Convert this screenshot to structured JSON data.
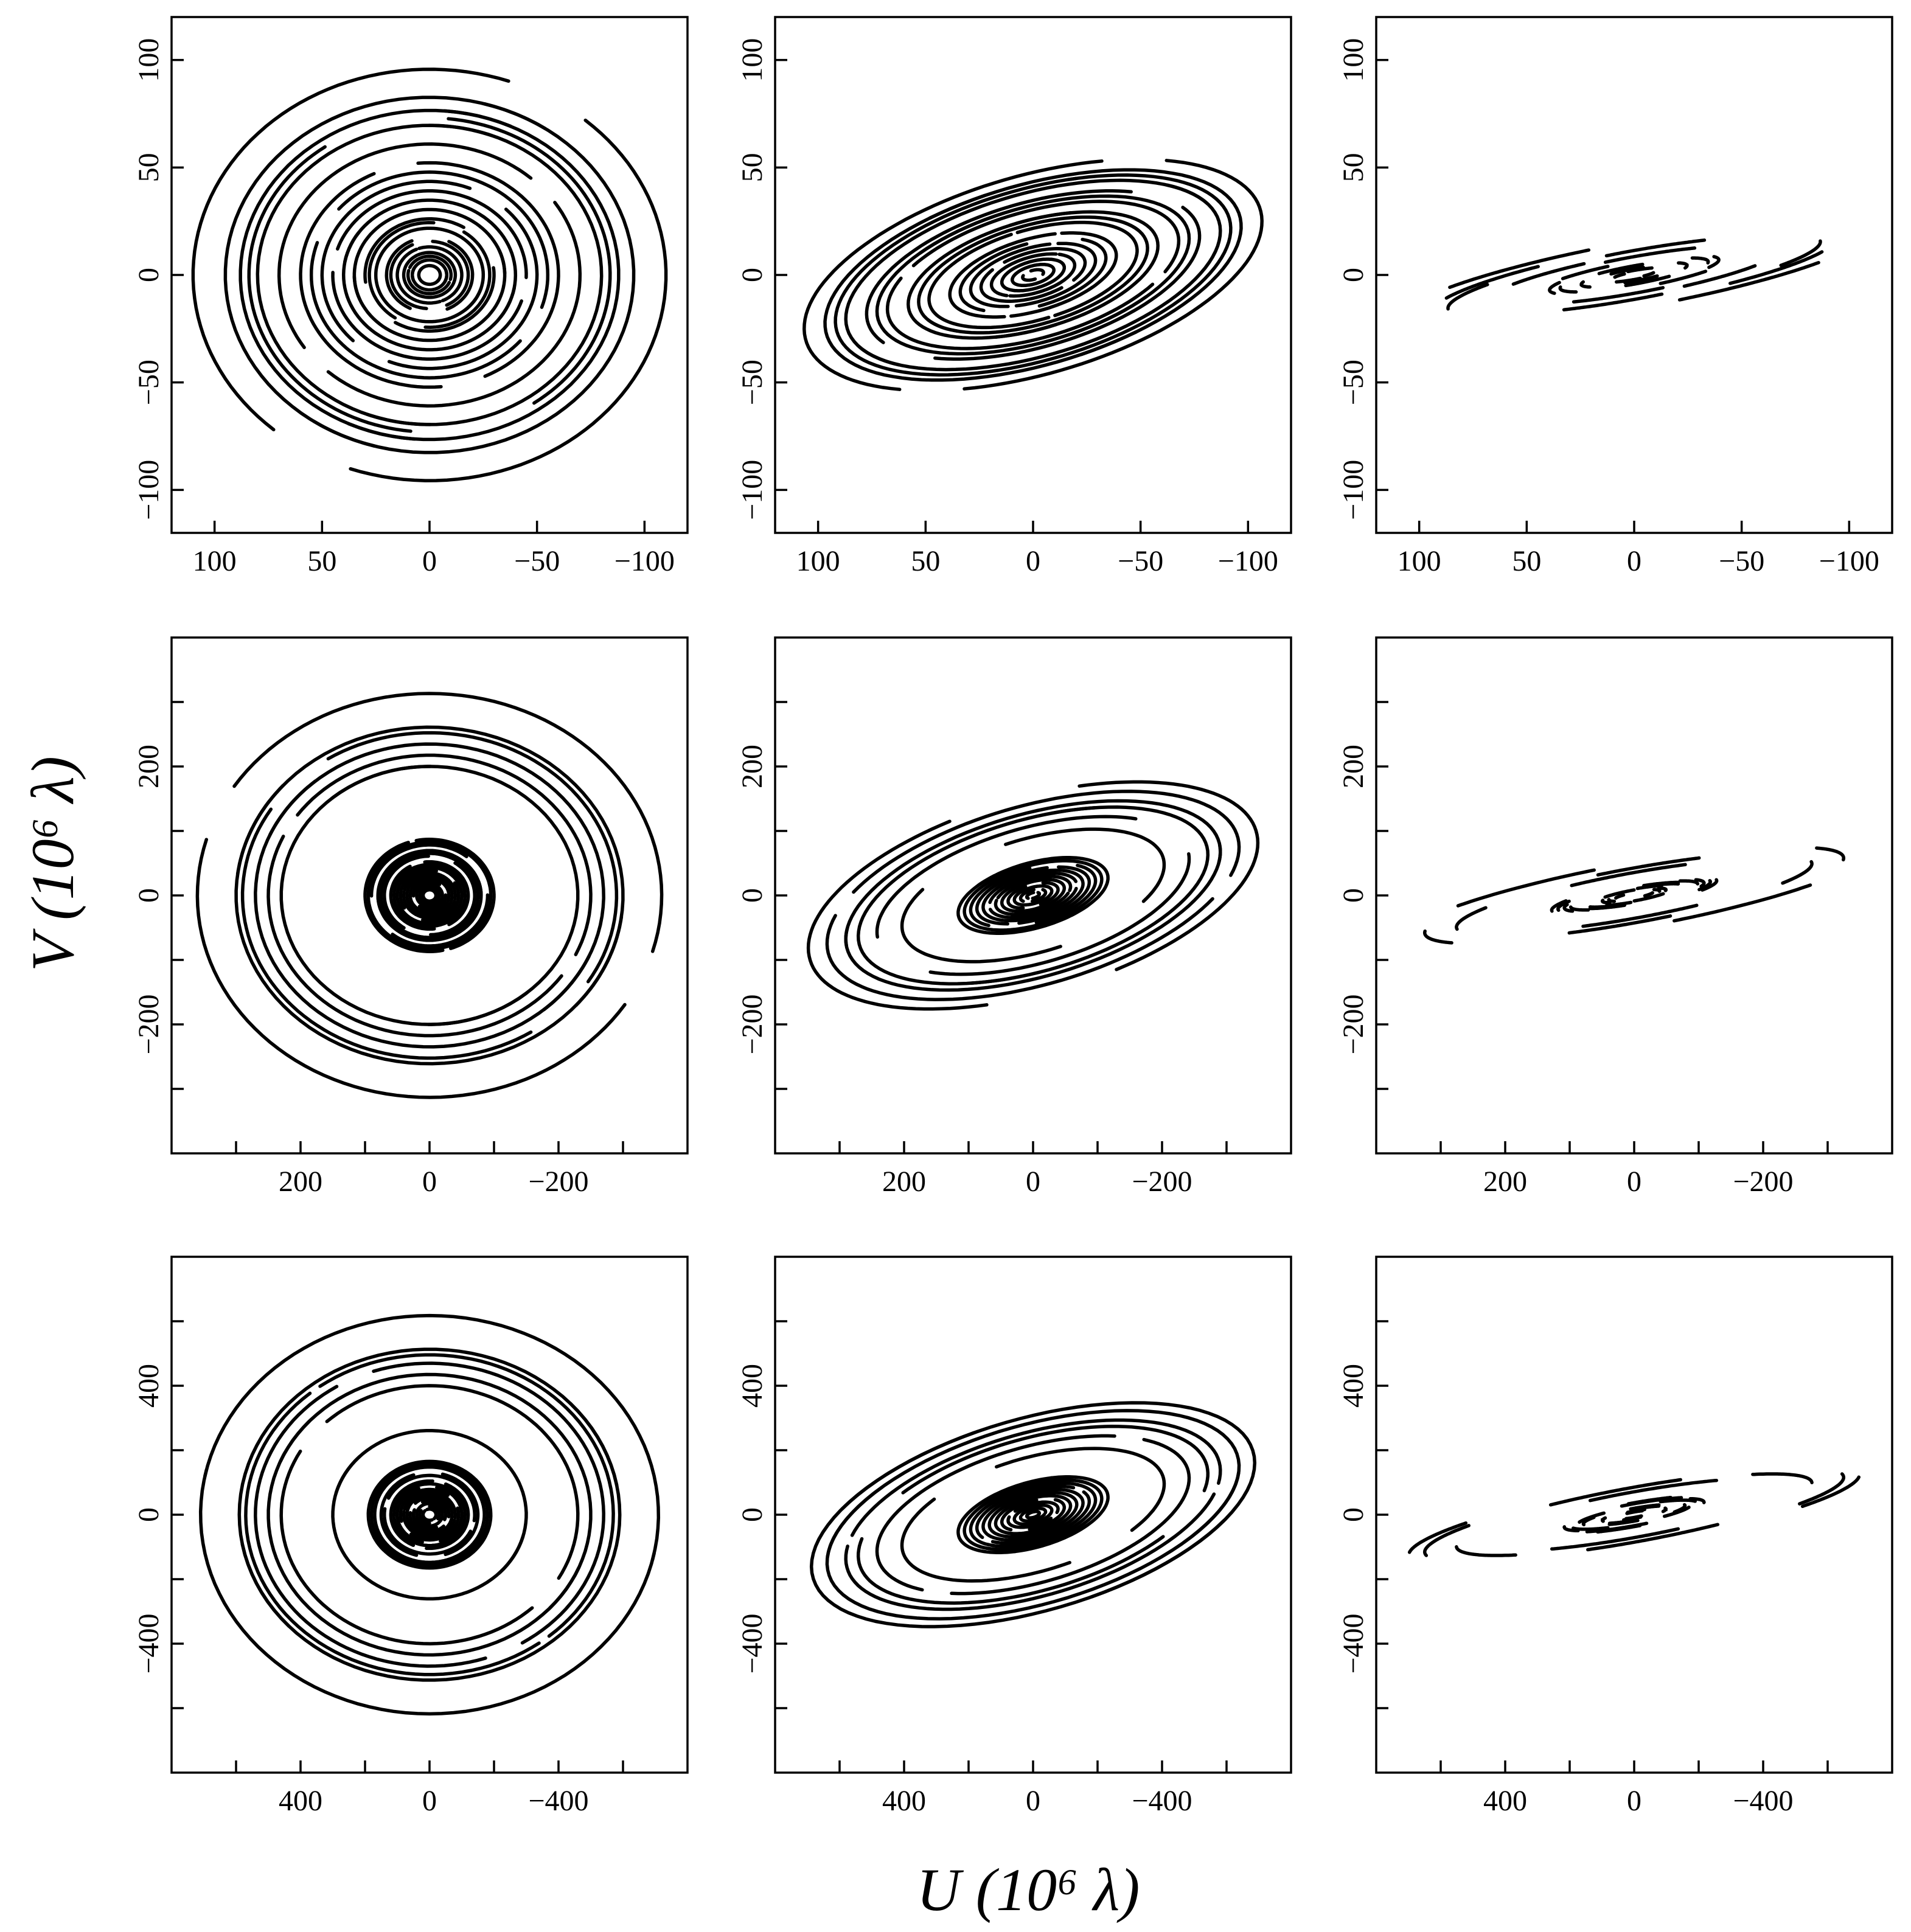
{
  "figure": {
    "xlabel": "U (10⁶ λ)",
    "ylabel": "V (10⁶ λ)",
    "ink_color": "#000000",
    "background_color": "#ffffff"
  },
  "chart_data": {
    "type": "scatter",
    "description_rows": 3,
    "description_cols": 3,
    "x_axis_inverted": true,
    "rows": [
      {
        "xlim": [
          120,
          -120
        ],
        "ylim": [
          -120,
          120
        ],
        "xticks": [
          100,
          50,
          0,
          -50,
          -100
        ],
        "xtick_labels": [
          "100",
          "50",
          "0",
          "−50",
          "−100"
        ],
        "yticks": [
          -100,
          -50,
          0,
          50,
          100
        ],
        "ytick_labels": [
          "−100",
          "−50",
          "0",
          "50",
          "100"
        ]
      },
      {
        "xlim": [
          400,
          -400
        ],
        "ylim": [
          -400,
          400
        ],
        "xticks": [
          300,
          200,
          100,
          0,
          -100,
          -200,
          -300
        ],
        "xtick_labels": [
          "",
          "200",
          "",
          "0",
          "",
          "−200",
          ""
        ],
        "yticks": [
          -300,
          -200,
          -100,
          0,
          100,
          200,
          300
        ],
        "ytick_labels": [
          "",
          "−200",
          "",
          "0",
          "",
          "200",
          ""
        ]
      },
      {
        "xlim": [
          800,
          -800
        ],
        "ylim": [
          -800,
          800
        ],
        "xticks": [
          600,
          400,
          200,
          0,
          -200,
          -400,
          -600
        ],
        "xtick_labels": [
          "",
          "400",
          "",
          "0",
          "",
          "−400",
          ""
        ],
        "yticks": [
          -600,
          -400,
          -200,
          0,
          200,
          400,
          600
        ],
        "ytick_labels": [
          "",
          "−400",
          "",
          "0",
          "",
          "400",
          ""
        ]
      }
    ],
    "columns": [
      {
        "declination_deg": 60,
        "ellipse_axis_ratio": 0.87,
        "track_half_span_hours": 5.5,
        "radii_by_row": [
          [
            110,
            95,
            88,
            84,
            80,
            70,
            60,
            55,
            50,
            45,
            40,
            35,
            30,
            28,
            25,
            20,
            18,
            15,
            12,
            10,
            8,
            5
          ],
          [
            360,
            300,
            290,
            270,
            250,
            230,
            100,
            95,
            90,
            80,
            75,
            70,
            60,
            55,
            50,
            45,
            40,
            35,
            30,
            25,
            20,
            15,
            10
          ],
          [
            710,
            590,
            570,
            540,
            500,
            460,
            300,
            190,
            180,
            170,
            150,
            140,
            120,
            110,
            100,
            90,
            80,
            70,
            60,
            50,
            40,
            30,
            20
          ]
        ]
      },
      {
        "declination_deg": 25,
        "ellipse_axis_ratio": 0.42,
        "track_half_span_hours": 5.5,
        "radii_by_row": [
          [
            110,
            100,
            95,
            90,
            80,
            75,
            70,
            60,
            55,
            50,
            40,
            35,
            30,
            25,
            20,
            15,
            10,
            5
          ],
          [
            360,
            330,
            300,
            280,
            250,
            210,
            120,
            110,
            100,
            90,
            80,
            70,
            60,
            50,
            40,
            30,
            20,
            10
          ],
          [
            710,
            660,
            600,
            560,
            500,
            420,
            240,
            220,
            200,
            180,
            160,
            140,
            120,
            100,
            80,
            60,
            40,
            20
          ]
        ]
      },
      {
        "declination_deg": 8,
        "ellipse_axis_ratio": 0.14,
        "track_half_span_hours": 2.5,
        "radii_by_row": [
          [
            110,
            95,
            88,
            80,
            70,
            60,
            45,
            40,
            35,
            30,
            25,
            20,
            15,
            10
          ],
          [
            360,
            330,
            300,
            280,
            250,
            130,
            120,
            110,
            100,
            90,
            80,
            70,
            60,
            50,
            40,
            30
          ],
          [
            710,
            660,
            600,
            560,
            500,
            260,
            240,
            220,
            200,
            180,
            160,
            140,
            120,
            100,
            80,
            60
          ]
        ]
      }
    ]
  }
}
